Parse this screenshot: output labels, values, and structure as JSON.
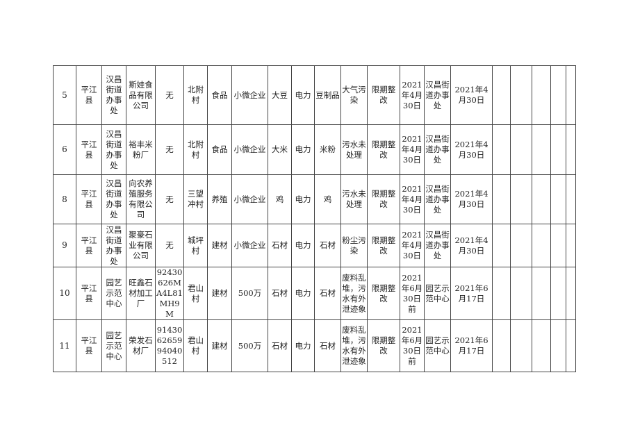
{
  "rows": [
    {
      "cells": [
        "5",
        "平江县",
        "汉昌街道办事处",
        "斯娃食品有限公司",
        "无",
        "北附村",
        "食品",
        "小微企业",
        "大豆",
        "电力",
        "豆制品",
        "大气污染",
        "限期整改",
        "2021年4月30日",
        "汉昌街道办事处",
        "2021年4月30日",
        "",
        "",
        "",
        "",
        ""
      ]
    },
    {
      "cells": [
        "6",
        "平江县",
        "汉昌街道办事处",
        "裕丰米粉厂",
        "无",
        "北附村",
        "食品",
        "小微企业",
        "大米",
        "电力",
        "米粉",
        "污水未处理",
        "限期整改",
        "2021年4月30日",
        "汉昌街道办事处",
        "2021年4月30日",
        "",
        "",
        "",
        "",
        ""
      ]
    },
    {
      "cells": [
        "8",
        "平江县",
        "汉昌街道办事处",
        "向农养殖服务有限公司",
        "无",
        "三望冲村",
        "养殖",
        "小微企业",
        "鸡",
        "电力",
        "鸡",
        "污水未处理",
        "限期整改",
        "2021年4月30日",
        "汉昌街道办事处",
        "2021年4月30日",
        "",
        "",
        "",
        "",
        ""
      ]
    },
    {
      "cells": [
        "9",
        "平江县",
        "汉昌街道办事处",
        "聚豪石业有限公司",
        "无",
        "城坪村",
        "建材",
        "小微企业",
        "石材",
        "电力",
        "石材",
        "粉尘污染",
        "限期整改",
        "2021年4月30日",
        "汉昌街道办事处",
        "2021年4月30日",
        "",
        "",
        "",
        "",
        ""
      ]
    },
    {
      "cells": [
        "10",
        "平江县",
        "园艺示范中心",
        "旺鑫石材加工厂",
        "92430626MA4L81MH9M",
        "君山村",
        "建材",
        "500万",
        "石材",
        "电力",
        "石材",
        "废料乱堆，污水有外泄迹象",
        "限期整改",
        "2021年6月30日前",
        "园艺示范中心",
        "2021年6月17日",
        "",
        "",
        "",
        "",
        ""
      ]
    },
    {
      "cells": [
        "11",
        "平江县",
        "园艺示范中心",
        "荣发石材厂",
        "914306265994040512",
        "君山村",
        "建材",
        "500万",
        "石材",
        "电力",
        "石材",
        "废料乱堆，污水有外泄迹象",
        "限期整改",
        "2021年6月30日前",
        "园艺示范中心",
        "2021年6月17日",
        "",
        "",
        "",
        "",
        ""
      ]
    }
  ]
}
